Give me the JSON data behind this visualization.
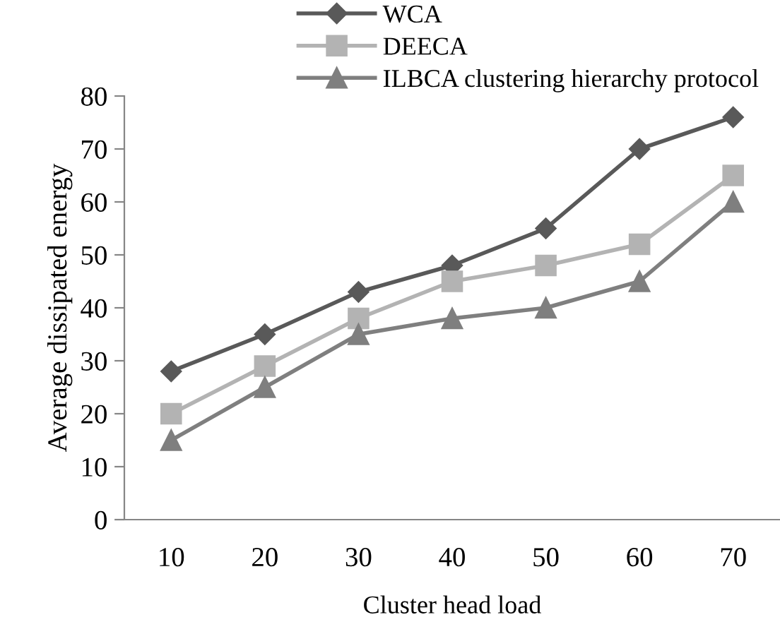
{
  "chart_data": {
    "type": "line",
    "xlabel": "Cluster head load",
    "ylabel": "Average dissipated energy",
    "categories": [
      "10",
      "20",
      "30",
      "40",
      "50",
      "60",
      "70"
    ],
    "series": [
      {
        "name": "WCA",
        "color": "#595959",
        "marker": "diamond",
        "values": [
          28,
          35,
          43,
          48,
          55,
          70,
          76
        ]
      },
      {
        "name": "DEECA",
        "color": "#b3b3b3",
        "marker": "square",
        "values": [
          20,
          29,
          38,
          45,
          48,
          52,
          65
        ]
      },
      {
        "name": "ILBCA clustering hierarchy protocol",
        "color": "#7f7f7f",
        "marker": "triangle",
        "values": [
          15,
          25,
          35,
          38,
          40,
          45,
          60
        ]
      }
    ],
    "ylim": [
      0,
      80
    ],
    "yticks": [
      0,
      10,
      20,
      30,
      40,
      50,
      60,
      70,
      80
    ],
    "grid": false,
    "legend": "top",
    "line_style": "solid"
  }
}
